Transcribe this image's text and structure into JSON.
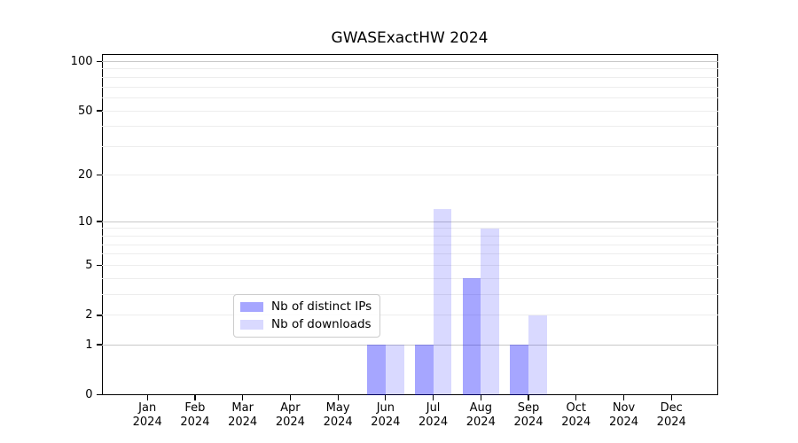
{
  "chart_data": {
    "type": "bar",
    "title": "GWASExactHW 2024",
    "year_label": "2024",
    "categories": [
      "Jan",
      "Feb",
      "Mar",
      "Apr",
      "May",
      "Jun",
      "Jul",
      "Aug",
      "Sep",
      "Oct",
      "Nov",
      "Dec"
    ],
    "series": [
      {
        "name": "Nb of distinct IPs",
        "color": "rgba(0,0,255,0.35)",
        "values": [
          0,
          0,
          0,
          0,
          0,
          1,
          1,
          4,
          1,
          0,
          0,
          0
        ]
      },
      {
        "name": "Nb of downloads",
        "color": "rgba(0,0,255,0.15)",
        "values": [
          0,
          0,
          0,
          0,
          0,
          1,
          12,
          9,
          2,
          0,
          0,
          0
        ]
      }
    ],
    "xlabel": "",
    "ylabel": "",
    "y_axis": {
      "scale": "log1p",
      "tick_values": [
        0,
        1,
        2,
        5,
        10,
        20,
        50,
        100
      ],
      "major_gridlines": [
        1,
        10,
        100
      ],
      "minor_gridlines": [
        2,
        3,
        4,
        5,
        6,
        7,
        8,
        9,
        20,
        30,
        40,
        50,
        60,
        70,
        80,
        90
      ],
      "range": [
        0,
        110
      ]
    },
    "grid": "horizontal",
    "legend_position": "lower center",
    "colors": {
      "major_grid": "#c8c8c8",
      "minor_grid": "#ededed",
      "axis": "#000000",
      "background": "#ffffff",
      "text": "#000000"
    }
  }
}
